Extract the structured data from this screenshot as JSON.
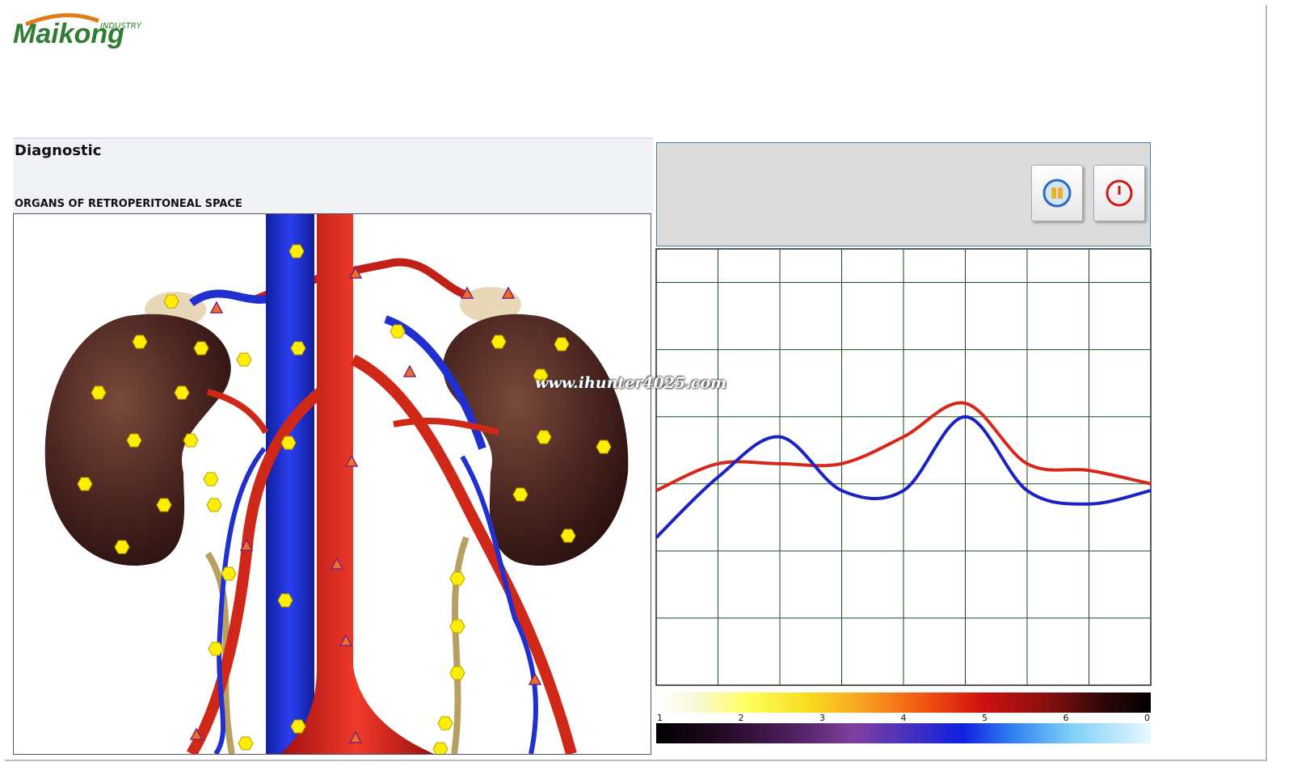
{
  "logo": {
    "tag": "INDUSTRY",
    "name": "Maikong"
  },
  "panel": {
    "title": "Diagnostic",
    "subtitle": "ORGANS OF RETROPERITONEAL SPACE"
  },
  "watermark": "www.ihunter4025.com",
  "chart_data": {
    "type": "line",
    "x": [
      0,
      1,
      2,
      3,
      4,
      5,
      6,
      7,
      8
    ],
    "xlim": [
      0,
      8
    ],
    "xticks": [
      1,
      2,
      3,
      4,
      5,
      6,
      7
    ],
    "ylim": [
      0,
      6.5
    ],
    "yticks": [
      1,
      2,
      3,
      4,
      5,
      6
    ],
    "grid": true,
    "grid_color": "#1f4a1f",
    "series": [
      {
        "color": "#d7261a",
        "values": [
          2.9,
          3.3,
          3.3,
          3.3,
          3.7,
          4.2,
          3.3,
          3.2,
          3.0
        ]
      },
      {
        "color": "#1a22c4",
        "values": [
          2.2,
          3.1,
          3.7,
          2.9,
          2.9,
          4.0,
          2.9,
          2.7,
          2.9
        ]
      }
    ]
  },
  "scale_labels": [
    "1",
    "2",
    "3",
    "4",
    "5",
    "6",
    "0"
  ]
}
